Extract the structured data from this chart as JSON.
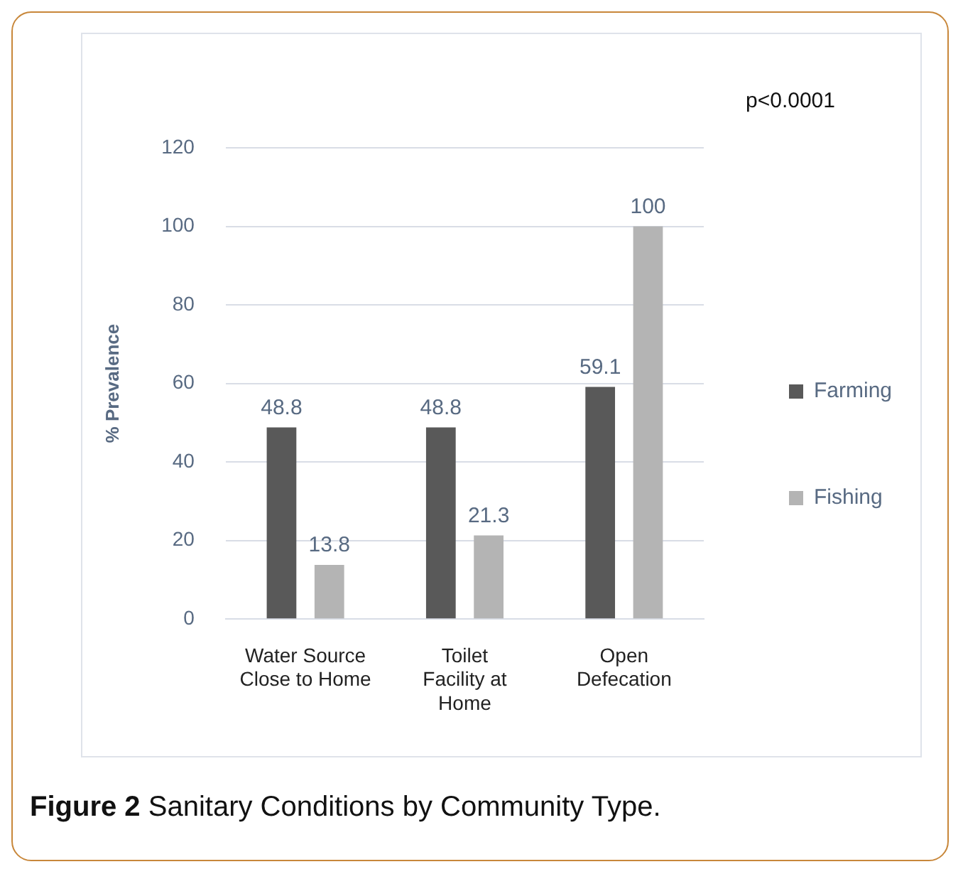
{
  "chart_data": {
    "type": "bar",
    "ylabel": "% Prevalence",
    "categories": [
      "Water Source Close to Home",
      "Toilet Facility at Home",
      "Open Defecation"
    ],
    "series": [
      {
        "name": "Farming",
        "color": "#595959",
        "values": [
          48.8,
          48.8,
          59.1
        ]
      },
      {
        "name": "Fishing",
        "color": "#b4b4b4",
        "values": [
          13.8,
          21.3,
          100
        ]
      }
    ],
    "ylim": [
      0,
      120
    ],
    "yticks": [
      0,
      20,
      40,
      60,
      80,
      100,
      120
    ],
    "grid": "y",
    "legend": "right",
    "data_labels": true,
    "annotations": [
      "p<0.0001",
      "Figure 2 Sanitary Conditions by Community Type."
    ]
  }
}
